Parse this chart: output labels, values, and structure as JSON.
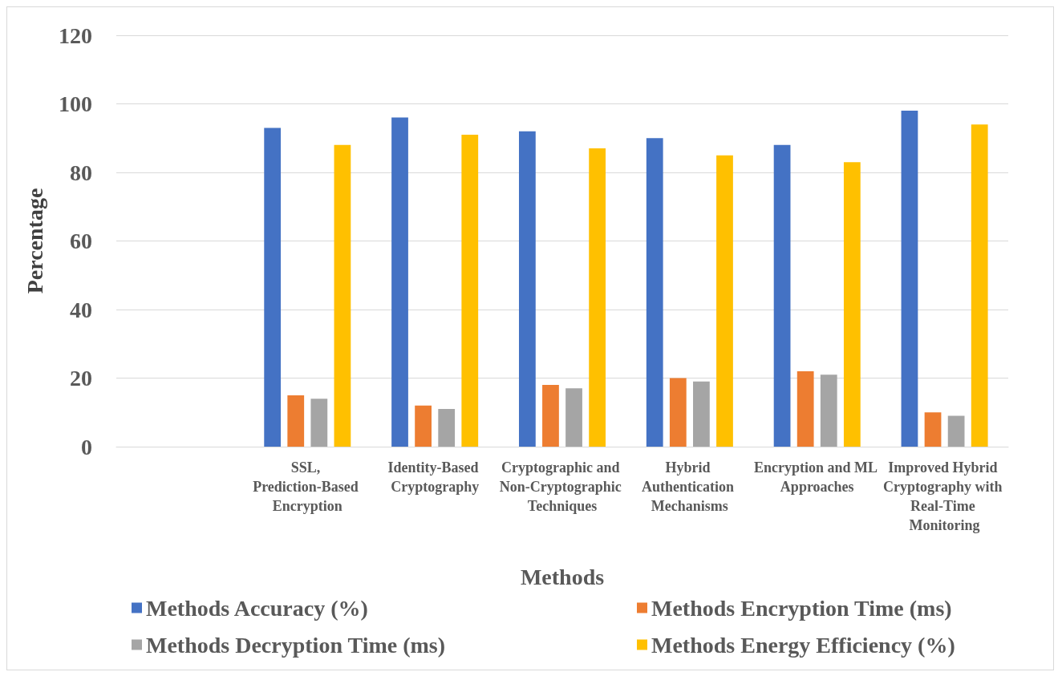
{
  "chart_data": {
    "type": "bar",
    "xlabel": "Methods",
    "ylabel": "Percentage",
    "categories": [
      null,
      "SSL, Prediction-Based Encryption",
      "Identity-Based Cryptography",
      "Cryptographic and Non-Cryptographic Techniques",
      "Hybrid Authentication Mechanisms",
      "Encryption and ML Approaches",
      "Improved Hybrid Cryptography with Real-Time Monitoring"
    ],
    "series": [
      {
        "name": "Methods Accuracy (%)",
        "color": "#4472c4",
        "values": [
          null,
          93,
          96,
          92,
          90,
          88,
          98
        ]
      },
      {
        "name": "Methods Encryption Time (ms)",
        "color": "#ed7d31",
        "values": [
          null,
          15,
          12,
          18,
          20,
          22,
          10
        ]
      },
      {
        "name": "Methods Decryption Time (ms)",
        "color": "#a5a5a5",
        "values": [
          null,
          14,
          11,
          17,
          19,
          21,
          9
        ]
      },
      {
        "name": "Methods Energy Efficiency (%)",
        "color": "#ffc000",
        "values": [
          null,
          88,
          91,
          87,
          85,
          83,
          94
        ]
      }
    ],
    "ylim": [
      0,
      120
    ],
    "yticks": [
      0,
      20,
      40,
      60,
      80,
      100,
      120
    ],
    "grid": "y",
    "legend": "bottom"
  }
}
